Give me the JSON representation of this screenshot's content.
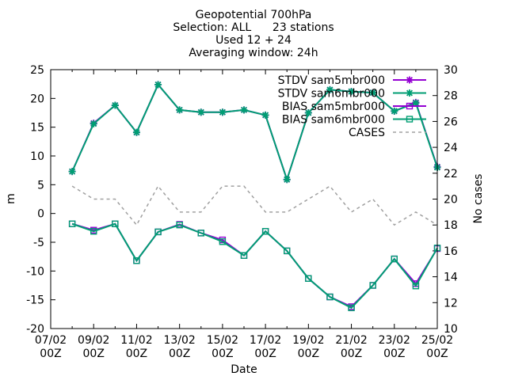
{
  "title_lines": [
    "Geopotential 700hPa",
    "Selection: ALL      23 stations",
    "Used 12 + 24",
    "Averaging window: 24h"
  ],
  "chart_data": {
    "type": "line",
    "xlabel": "Date",
    "ylabel": "m",
    "y2label": "No cases",
    "x_ticks": [
      "07/02\n00Z",
      "09/02\n00Z",
      "11/02\n00Z",
      "13/02\n00Z",
      "15/02\n00Z",
      "17/02\n00Z",
      "19/02\n00Z",
      "21/02\n00Z",
      "23/02\n00Z",
      "25/02\n00Z"
    ],
    "x_range": [
      "2024-02-07 00:00",
      "2024-02-25 00:00"
    ],
    "ylim": [
      -20,
      25
    ],
    "y_ticks": [
      -20,
      -15,
      -10,
      -5,
      0,
      5,
      10,
      15,
      20,
      25
    ],
    "y2lim": [
      10,
      30
    ],
    "y2_ticks": [
      10,
      12,
      14,
      16,
      18,
      20,
      22,
      24,
      26,
      28,
      30
    ],
    "legend_position": "top-right",
    "x": [
      "2024-02-08 00:00",
      "2024-02-09 00:00",
      "2024-02-10 00:00",
      "2024-02-11 00:00",
      "2024-02-12 00:00",
      "2024-02-13 00:00",
      "2024-02-14 00:00",
      "2024-02-15 00:00",
      "2024-02-16 00:00",
      "2024-02-17 00:00",
      "2024-02-18 00:00",
      "2024-02-19 00:00",
      "2024-02-20 00:00",
      "2024-02-21 00:00",
      "2024-02-22 00:00",
      "2024-02-23 00:00",
      "2024-02-24 00:00",
      "2024-02-25 00:00"
    ],
    "series": [
      {
        "name": "STDV sam5mbr000",
        "axis": "y1",
        "color": "#9400d3",
        "marker": "star",
        "values": [
          7.3,
          15.7,
          18.8,
          14.1,
          22.4,
          18.0,
          17.6,
          17.6,
          18.0,
          17.1,
          5.9,
          17.5,
          21.5,
          21.2,
          21.0,
          17.8,
          19.3,
          8.1
        ]
      },
      {
        "name": "STDV sam6mbr000",
        "axis": "y1",
        "color": "#009e73",
        "marker": "star",
        "values": [
          7.3,
          15.6,
          18.8,
          14.1,
          22.4,
          18.0,
          17.6,
          17.6,
          18.0,
          17.1,
          5.9,
          17.5,
          21.5,
          21.2,
          21.0,
          17.8,
          19.2,
          8.0
        ]
      },
      {
        "name": "BIAS sam5mbr000",
        "axis": "y1",
        "color": "#9400d3",
        "marker": "square",
        "values": [
          -1.8,
          -2.9,
          -1.8,
          -8.2,
          -3.2,
          -1.9,
          -3.4,
          -4.6,
          -7.3,
          -3.1,
          -6.5,
          -11.3,
          -14.5,
          -16.2,
          -12.5,
          -7.9,
          -12.2,
          -6.1
        ]
      },
      {
        "name": "BIAS sam6mbr000",
        "axis": "y1",
        "color": "#009e73",
        "marker": "square",
        "values": [
          -1.8,
          -3.1,
          -1.8,
          -8.2,
          -3.2,
          -2.0,
          -3.4,
          -4.9,
          -7.3,
          -3.1,
          -6.5,
          -11.3,
          -14.5,
          -16.4,
          -12.5,
          -7.9,
          -12.6,
          -6.0
        ]
      },
      {
        "name": "CASES",
        "axis": "y2",
        "color": "#a0a0a0",
        "marker": "none",
        "dashed": true,
        "values": [
          21,
          20,
          20,
          18,
          21,
          19,
          19,
          21,
          21,
          19,
          19,
          20,
          21,
          19,
          20,
          18,
          19,
          18
        ]
      }
    ]
  }
}
